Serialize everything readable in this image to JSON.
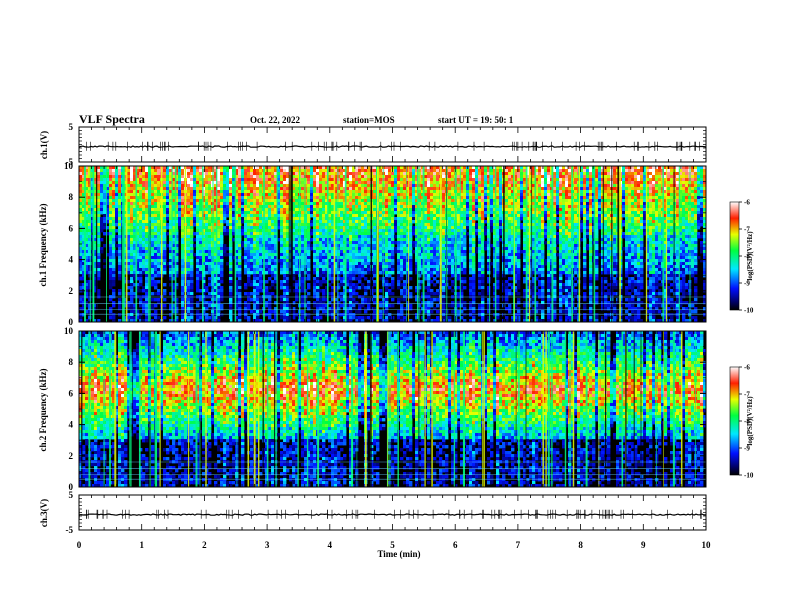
{
  "header": {
    "title": "VLF Spectra",
    "date": "Oct. 22, 2022",
    "station": "station=MOS",
    "start": "start UT =  19: 50: 1"
  },
  "chart_data": [
    {
      "type": "line",
      "id": "ch1-waveform",
      "ylabel": "ch.1(V)",
      "ylim": [
        -5,
        5
      ],
      "yticks": [
        "5",
        "-5"
      ],
      "x": [
        0,
        10
      ],
      "values": [
        0,
        0
      ],
      "xlim": [
        0,
        10
      ]
    },
    {
      "type": "heatmap",
      "id": "ch1-spectrogram",
      "ylabel": "ch.1 Frequency (kHz)",
      "ylim": [
        0,
        10
      ],
      "xlim": [
        0,
        10
      ],
      "yticks": [
        "0",
        "2",
        "4",
        "6",
        "8",
        "10"
      ],
      "colorbar": {
        "label": "log(PSD)(V²/Hz)",
        "range": [
          -10,
          -6
        ],
        "ticks": [
          "-6",
          "-7",
          "-8",
          "-9",
          "-10"
        ]
      }
    },
    {
      "type": "heatmap",
      "id": "ch2-spectrogram",
      "ylabel": "ch.2 Frequency (kHz)",
      "ylim": [
        0,
        10
      ],
      "xlim": [
        0,
        10
      ],
      "yticks": [
        "0",
        "2",
        "4",
        "6",
        "8",
        "10"
      ],
      "colorbar": {
        "label": "log(PSD)(V²/Hz)",
        "range": [
          -10,
          -6
        ],
        "ticks": [
          "-6",
          "-7",
          "-8",
          "-9",
          "-10"
        ]
      }
    },
    {
      "type": "line",
      "id": "ch3-waveform",
      "ylabel": "ch.3(V)",
      "ylim": [
        -5,
        5
      ],
      "yticks": [
        "5",
        "-5"
      ],
      "x": [
        0,
        10
      ],
      "values": [
        0,
        0
      ],
      "xlim": [
        0,
        10
      ],
      "xlabel": "Time (min)",
      "xticks": [
        "0",
        "1",
        "2",
        "3",
        "4",
        "5",
        "6",
        "7",
        "8",
        "9",
        "10"
      ]
    }
  ],
  "colors": {
    "low": "#000000",
    "mid": "#00ff66",
    "high": "#ff2a00"
  }
}
